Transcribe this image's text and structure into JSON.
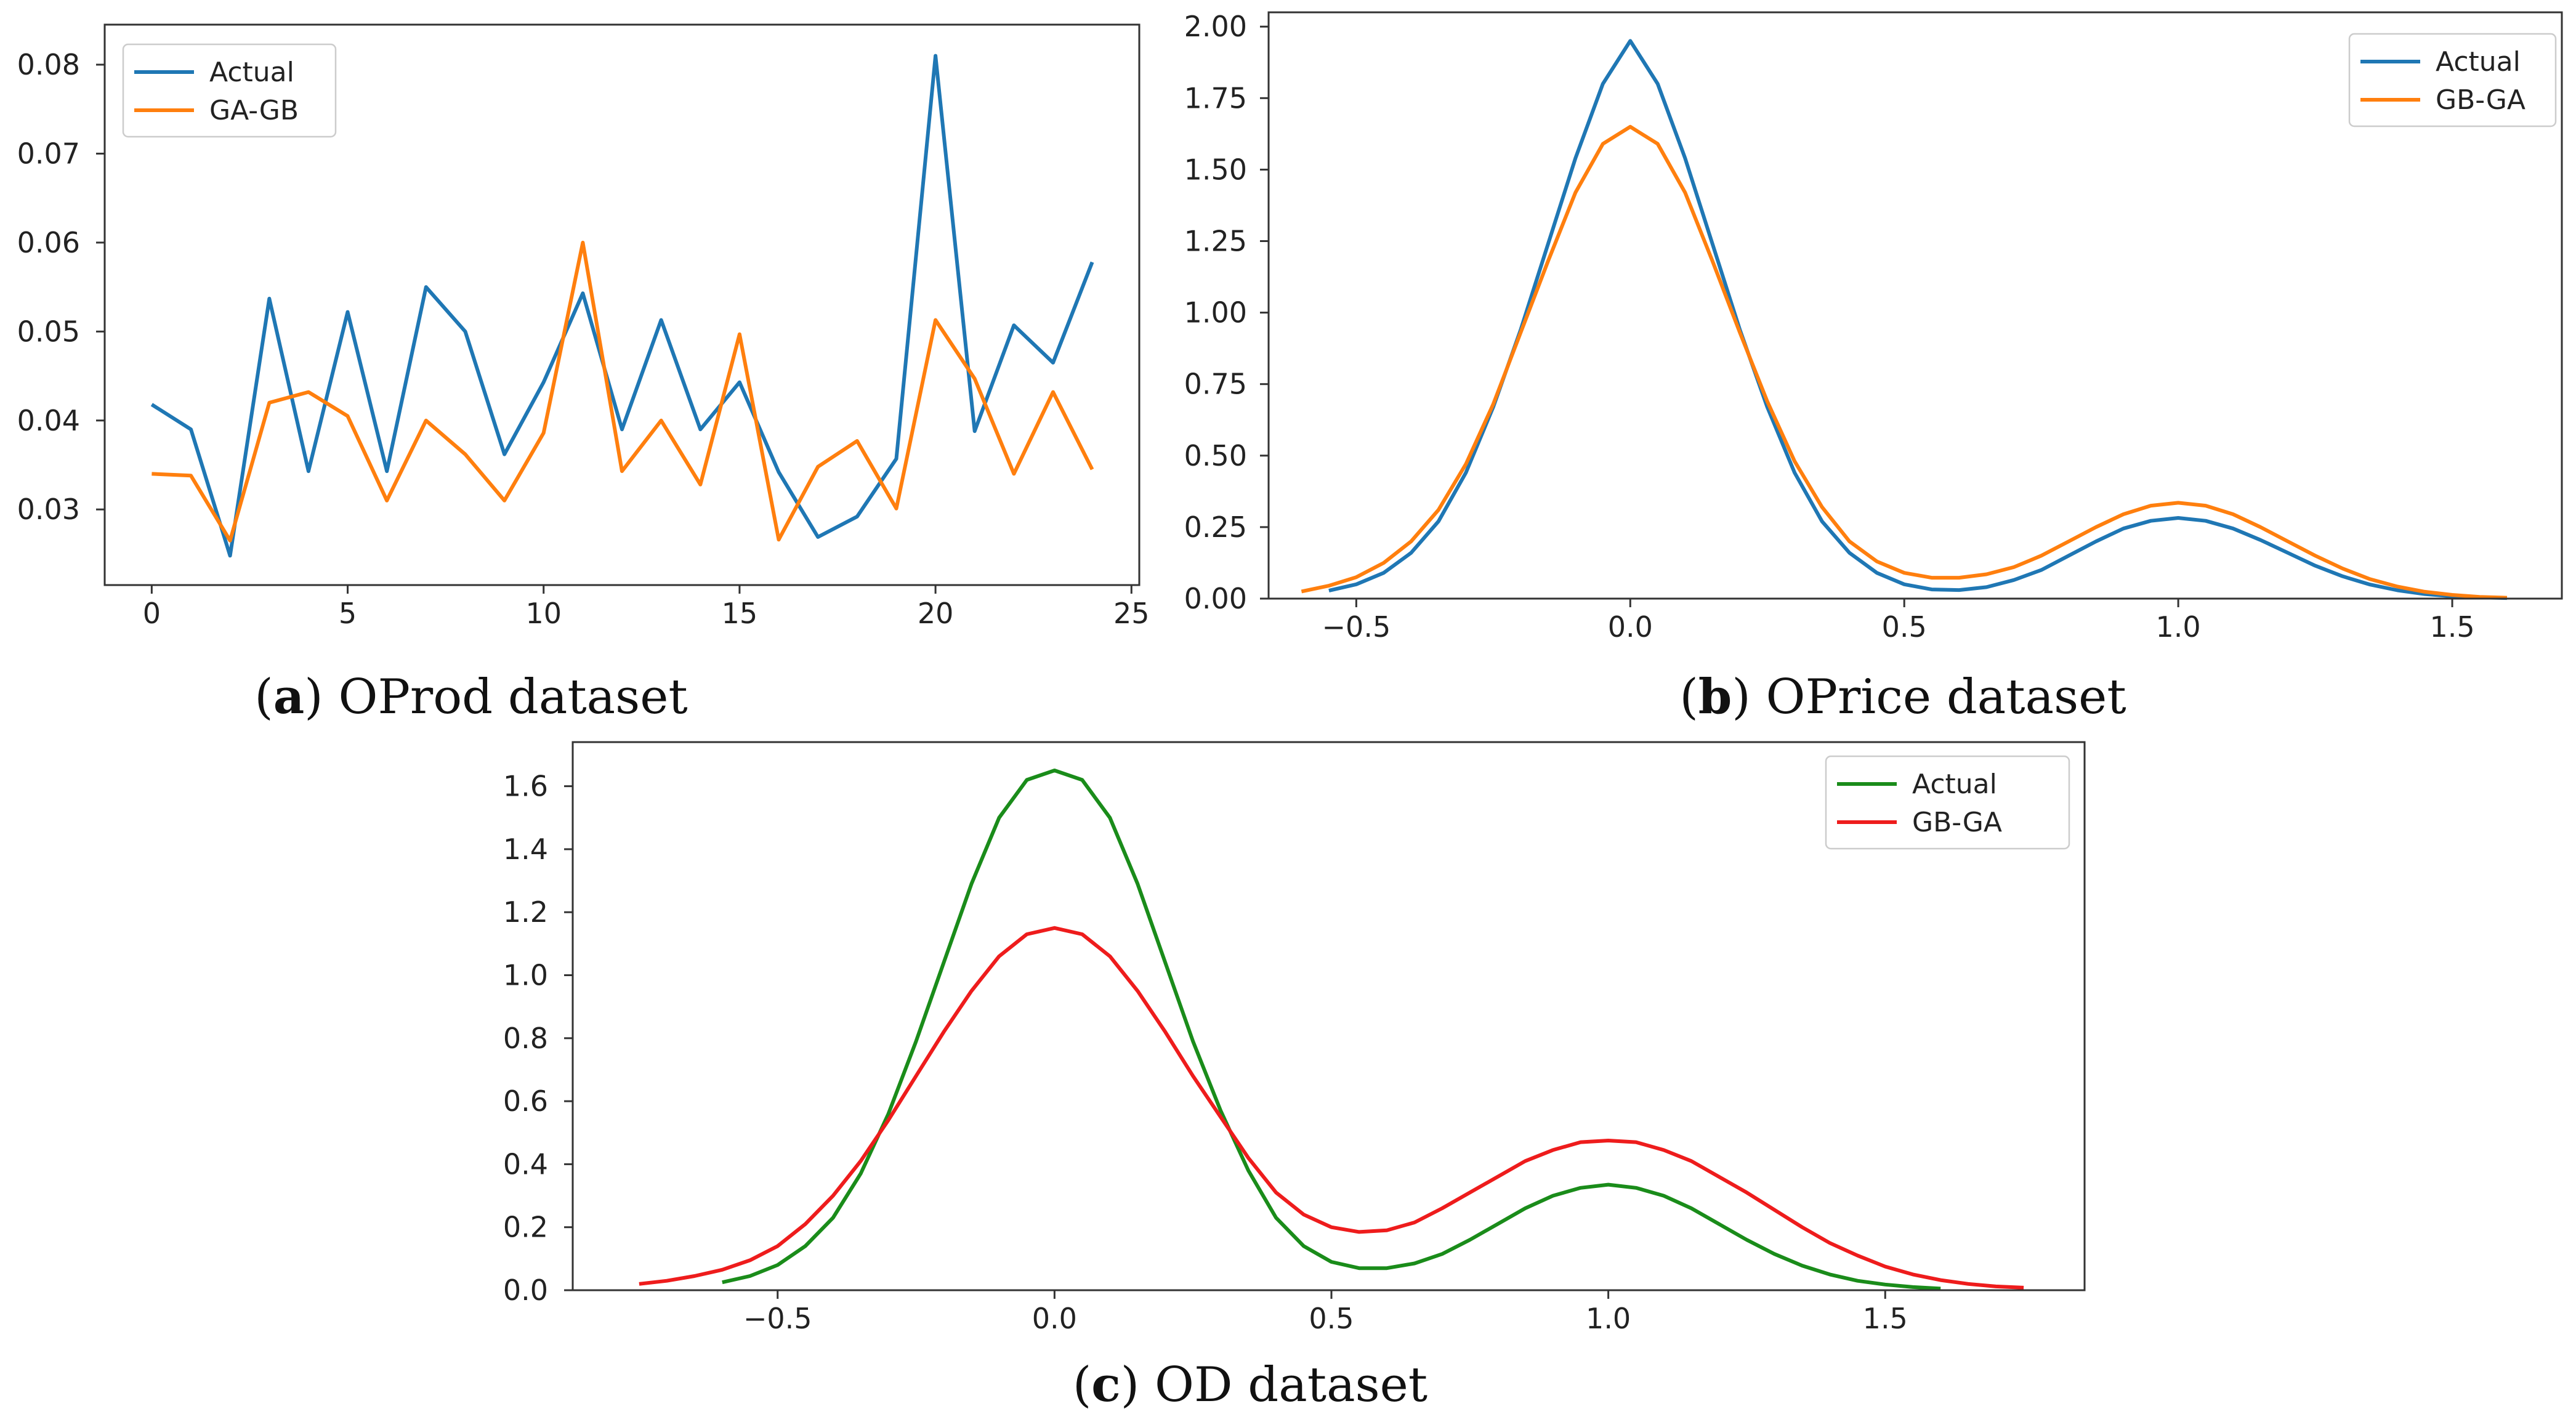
{
  "chart_data": [
    {
      "type": "line",
      "caption_letter": "a",
      "caption_text": "OProd dataset",
      "xlim": [
        -1.2,
        25.2
      ],
      "ylim": [
        0.0215,
        0.0845
      ],
      "xticks": [
        0,
        5,
        10,
        15,
        20,
        25
      ],
      "xtick_labels": [
        "0",
        "5",
        "10",
        "15",
        "20",
        "25"
      ],
      "yticks": [
        0.03,
        0.04,
        0.05,
        0.06,
        0.07,
        0.08
      ],
      "ytick_labels": [
        "0.03",
        "0.04",
        "0.05",
        "0.06",
        "0.07",
        "0.08"
      ],
      "legend_position": "top-left",
      "x": [
        0,
        1,
        2,
        3,
        4,
        5,
        6,
        7,
        8,
        9,
        10,
        11,
        12,
        13,
        14,
        15,
        16,
        17,
        18,
        19,
        20,
        21,
        22,
        23,
        24
      ],
      "series": [
        {
          "name": "Actual",
          "color": "#1f77b4",
          "values": [
            0.0418,
            0.039,
            0.0248,
            0.0537,
            0.0343,
            0.0522,
            0.0343,
            0.055,
            0.05,
            0.0362,
            0.0443,
            0.0543,
            0.039,
            0.0513,
            0.039,
            0.0443,
            0.0342,
            0.0269,
            0.0292,
            0.0357,
            0.081,
            0.0388,
            0.0507,
            0.0465,
            0.0578
          ]
        },
        {
          "name": "GA-GB",
          "color": "#ff7f0e",
          "values": [
            0.034,
            0.0338,
            0.0265,
            0.042,
            0.0432,
            0.0405,
            0.031,
            0.04,
            0.0362,
            0.031,
            0.0386,
            0.06,
            0.0343,
            0.04,
            0.0328,
            0.0497,
            0.0266,
            0.0348,
            0.0377,
            0.0301,
            0.0513,
            0.0447,
            0.034,
            0.0432,
            0.0345
          ]
        }
      ]
    },
    {
      "type": "line",
      "caption_letter": "b",
      "caption_text": "OPrice dataset",
      "xlim": [
        -0.66,
        1.7
      ],
      "ylim": [
        0.0,
        2.05
      ],
      "xticks": [
        -0.5,
        0.0,
        0.5,
        1.0,
        1.5
      ],
      "xtick_labels": [
        "−0.5",
        "0.0",
        "0.5",
        "1.0",
        "1.5"
      ],
      "yticks": [
        0.0,
        0.25,
        0.5,
        0.75,
        1.0,
        1.25,
        1.5,
        1.75,
        2.0
      ],
      "ytick_labels": [
        "0.00",
        "0.25",
        "0.50",
        "0.75",
        "1.00",
        "1.25",
        "1.50",
        "1.75",
        "2.00"
      ],
      "legend_position": "top-right",
      "series": [
        {
          "name": "Actual",
          "color": "#1f77b4",
          "x": [
            -0.55,
            -0.5,
            -0.45,
            -0.4,
            -0.35,
            -0.3,
            -0.25,
            -0.2,
            -0.15,
            -0.1,
            -0.05,
            0.0,
            0.05,
            0.1,
            0.15,
            0.2,
            0.25,
            0.3,
            0.35,
            0.4,
            0.45,
            0.5,
            0.55,
            0.6,
            0.65,
            0.7,
            0.75,
            0.8,
            0.85,
            0.9,
            0.95,
            1.0,
            1.05,
            1.1,
            1.15,
            1.2,
            1.25,
            1.3,
            1.35,
            1.4,
            1.45,
            1.5,
            1.55,
            1.6
          ],
          "values": [
            0.028,
            0.05,
            0.09,
            0.16,
            0.27,
            0.44,
            0.67,
            0.94,
            1.24,
            1.54,
            1.8,
            1.95,
            1.8,
            1.54,
            1.24,
            0.94,
            0.67,
            0.44,
            0.27,
            0.16,
            0.09,
            0.05,
            0.032,
            0.03,
            0.04,
            0.065,
            0.1,
            0.15,
            0.2,
            0.245,
            0.272,
            0.282,
            0.272,
            0.245,
            0.205,
            0.16,
            0.115,
            0.078,
            0.049,
            0.029,
            0.016,
            0.008,
            0.004,
            0.002
          ]
        },
        {
          "name": "GB-GA",
          "color": "#ff7f0e",
          "x": [
            -0.6,
            -0.55,
            -0.5,
            -0.45,
            -0.4,
            -0.35,
            -0.3,
            -0.25,
            -0.2,
            -0.15,
            -0.1,
            -0.05,
            0.0,
            0.05,
            0.1,
            0.15,
            0.2,
            0.25,
            0.3,
            0.35,
            0.4,
            0.45,
            0.5,
            0.55,
            0.6,
            0.65,
            0.7,
            0.75,
            0.8,
            0.85,
            0.9,
            0.95,
            1.0,
            1.05,
            1.1,
            1.15,
            1.2,
            1.25,
            1.3,
            1.35,
            1.4,
            1.45,
            1.5,
            1.55,
            1.6
          ],
          "values": [
            0.025,
            0.045,
            0.075,
            0.125,
            0.2,
            0.31,
            0.47,
            0.68,
            0.93,
            1.18,
            1.42,
            1.59,
            1.65,
            1.59,
            1.42,
            1.18,
            0.93,
            0.69,
            0.48,
            0.32,
            0.2,
            0.13,
            0.09,
            0.073,
            0.073,
            0.085,
            0.11,
            0.15,
            0.2,
            0.25,
            0.295,
            0.325,
            0.335,
            0.325,
            0.295,
            0.25,
            0.2,
            0.15,
            0.105,
            0.068,
            0.042,
            0.024,
            0.013,
            0.006,
            0.003
          ]
        }
      ]
    },
    {
      "type": "line",
      "caption_letter": "c",
      "caption_text": "OD dataset",
      "xlim": [
        -0.87,
        1.86
      ],
      "ylim": [
        0.0,
        1.74
      ],
      "xticks": [
        -0.5,
        0.0,
        0.5,
        1.0,
        1.5
      ],
      "xtick_labels": [
        "−0.5",
        "0.0",
        "0.5",
        "1.0",
        "1.5"
      ],
      "yticks": [
        0.0,
        0.2,
        0.4,
        0.6,
        0.8,
        1.0,
        1.2,
        1.4,
        1.6
      ],
      "ytick_labels": [
        "0.0",
        "0.2",
        "0.4",
        "0.6",
        "0.8",
        "1.0",
        "1.2",
        "1.4",
        "1.6"
      ],
      "legend_position": "top-right",
      "series": [
        {
          "name": "Actual",
          "color": "#1a8c1a",
          "x": [
            -0.6,
            -0.55,
            -0.5,
            -0.45,
            -0.4,
            -0.35,
            -0.3,
            -0.25,
            -0.2,
            -0.15,
            -0.1,
            -0.05,
            0.0,
            0.05,
            0.1,
            0.15,
            0.2,
            0.25,
            0.3,
            0.35,
            0.4,
            0.45,
            0.5,
            0.55,
            0.6,
            0.65,
            0.7,
            0.75,
            0.8,
            0.85,
            0.9,
            0.95,
            1.0,
            1.05,
            1.1,
            1.15,
            1.2,
            1.25,
            1.3,
            1.35,
            1.4,
            1.45,
            1.5,
            1.55,
            1.6
          ],
          "values": [
            0.025,
            0.045,
            0.08,
            0.14,
            0.23,
            0.37,
            0.56,
            0.79,
            1.04,
            1.29,
            1.5,
            1.62,
            1.65,
            1.62,
            1.5,
            1.29,
            1.04,
            0.79,
            0.57,
            0.38,
            0.23,
            0.14,
            0.09,
            0.07,
            0.07,
            0.085,
            0.115,
            0.16,
            0.21,
            0.26,
            0.3,
            0.325,
            0.335,
            0.325,
            0.3,
            0.26,
            0.21,
            0.16,
            0.115,
            0.078,
            0.05,
            0.03,
            0.018,
            0.01,
            0.005
          ]
        },
        {
          "name": "GB-GA",
          "color": "#ee1c1c",
          "x": [
            -0.75,
            -0.7,
            -0.65,
            -0.6,
            -0.55,
            -0.5,
            -0.45,
            -0.4,
            -0.35,
            -0.3,
            -0.25,
            -0.2,
            -0.15,
            -0.1,
            -0.05,
            0.0,
            0.05,
            0.1,
            0.15,
            0.2,
            0.25,
            0.3,
            0.35,
            0.4,
            0.45,
            0.5,
            0.55,
            0.6,
            0.65,
            0.7,
            0.75,
            0.8,
            0.85,
            0.9,
            0.95,
            1.0,
            1.05,
            1.1,
            1.15,
            1.2,
            1.25,
            1.3,
            1.35,
            1.4,
            1.45,
            1.5,
            1.55,
            1.6,
            1.65,
            1.7,
            1.75
          ],
          "values": [
            0.02,
            0.03,
            0.045,
            0.065,
            0.095,
            0.14,
            0.21,
            0.3,
            0.41,
            0.54,
            0.68,
            0.82,
            0.95,
            1.06,
            1.13,
            1.15,
            1.13,
            1.06,
            0.95,
            0.82,
            0.68,
            0.55,
            0.42,
            0.31,
            0.24,
            0.2,
            0.185,
            0.19,
            0.215,
            0.26,
            0.31,
            0.36,
            0.41,
            0.445,
            0.47,
            0.475,
            0.47,
            0.445,
            0.41,
            0.36,
            0.31,
            0.255,
            0.2,
            0.15,
            0.11,
            0.075,
            0.05,
            0.032,
            0.02,
            0.012,
            0.008
          ]
        }
      ]
    }
  ]
}
